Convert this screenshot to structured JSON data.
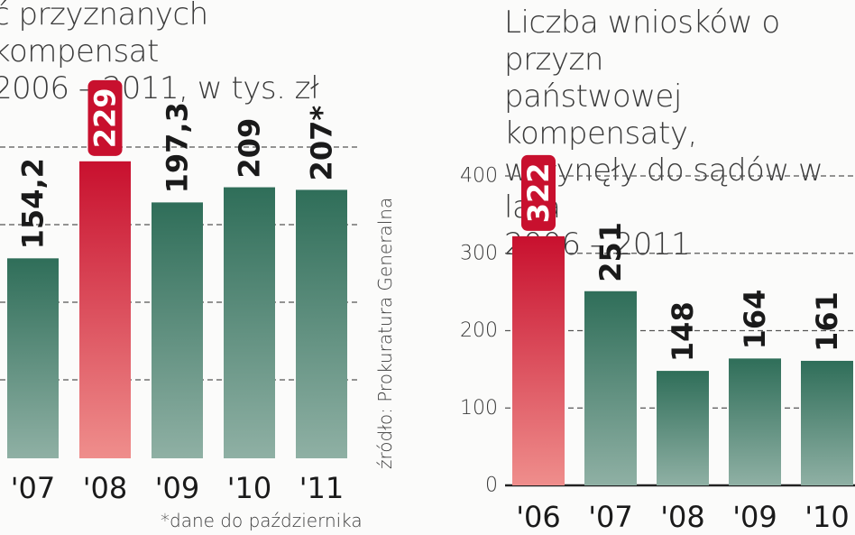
{
  "chart_data": [
    {
      "type": "bar",
      "title": "ć przyznanych kompensat\n2006 – 2011, w tys. zł",
      "categories": [
        "'07",
        "'08",
        "'09",
        "'10",
        "'11"
      ],
      "values": [
        154.2,
        229,
        197.3,
        209,
        207
      ],
      "value_labels": [
        "154,2",
        "229",
        "197,3",
        "209",
        "207*"
      ],
      "highlight": "'08",
      "grid": true
    },
    {
      "type": "bar",
      "title": "Liczba wniosków o przyzn\npaństwowej kompensaty,\nwpłynęły do sądów w lata\n2006 – 2011",
      "categories": [
        "'06",
        "'07",
        "'08",
        "'09",
        "'10"
      ],
      "values": [
        322,
        251,
        148,
        164,
        161
      ],
      "value_labels": [
        "322",
        "251",
        "148",
        "164",
        "161"
      ],
      "highlight": "'06",
      "ylim": [
        0,
        400
      ],
      "yticks": [
        "0",
        "100",
        "200",
        "300",
        "400"
      ],
      "grid": true
    }
  ],
  "source": "źródło: Prokuratura Generalna",
  "footnote": "*dane do października",
  "colors": {
    "bar_top": "#2f6e59",
    "bar_bottom": "#8fb0a4",
    "highlight_top": "#c8102e",
    "highlight_bottom": "#ef8e8c",
    "grid": "#555555",
    "text": "#1a1a1a"
  }
}
